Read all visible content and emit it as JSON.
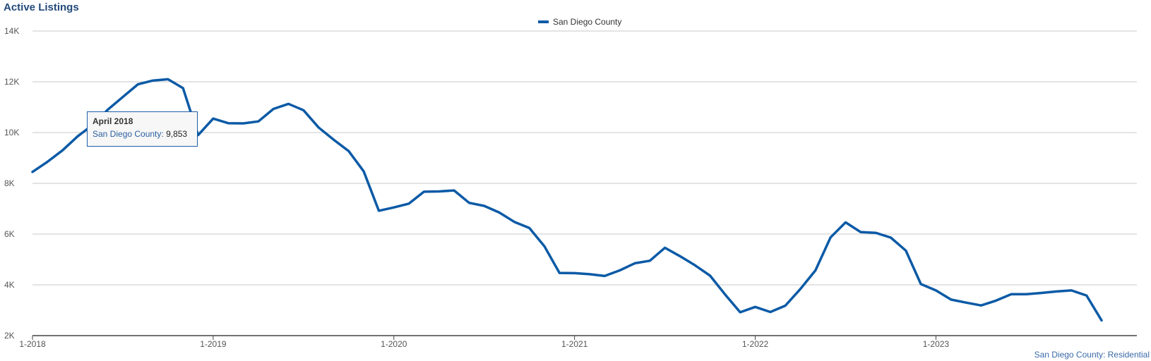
{
  "chart_data": {
    "type": "line",
    "title": "Active Listings",
    "ylim": [
      2000,
      14000
    ],
    "y_ticks": [
      2000,
      4000,
      6000,
      8000,
      10000,
      12000,
      14000
    ],
    "y_tick_labels": [
      "2K",
      "4K",
      "6K",
      "8K",
      "10K",
      "12K",
      "14K"
    ],
    "x_tick_labels": [
      "1-2018",
      "1-2019",
      "1-2020",
      "1-2021",
      "1-2022",
      "1-2023"
    ],
    "x_start": "2018-01",
    "x_end": "2023-12",
    "grid": true,
    "legend_position": "top-center",
    "color": "#0b5aa6",
    "x": [
      "2018-01",
      "2018-02",
      "2018-03",
      "2018-04",
      "2018-05",
      "2018-06",
      "2018-07",
      "2018-08",
      "2018-09",
      "2018-10",
      "2018-11",
      "2018-12",
      "2019-01",
      "2019-02",
      "2019-03",
      "2019-04",
      "2019-05",
      "2019-06",
      "2019-07",
      "2019-08",
      "2019-09",
      "2019-10",
      "2019-11",
      "2019-12",
      "2020-01",
      "2020-02",
      "2020-03",
      "2020-04",
      "2020-05",
      "2020-06",
      "2020-07",
      "2020-08",
      "2020-09",
      "2020-10",
      "2020-11",
      "2020-12",
      "2021-01",
      "2021-02",
      "2021-03",
      "2021-04",
      "2021-05",
      "2021-06",
      "2021-07",
      "2021-08",
      "2021-09",
      "2021-10",
      "2021-11",
      "2021-12",
      "2022-01",
      "2022-02",
      "2022-03",
      "2022-04",
      "2022-05",
      "2022-06",
      "2022-07",
      "2022-08",
      "2022-09",
      "2022-10",
      "2022-11",
      "2022-12",
      "2023-01",
      "2023-02",
      "2023-03",
      "2023-04",
      "2023-05",
      "2023-06",
      "2023-07",
      "2023-08",
      "2023-09",
      "2023-10",
      "2023-11",
      "2023-12"
    ],
    "series": [
      {
        "name": "San Diego County",
        "values": [
          8450,
          8850,
          9300,
          9853,
          10300,
          10900,
          11400,
          11900,
          12050,
          12100,
          11750,
          9900,
          10550,
          10370,
          10360,
          10440,
          10930,
          11130,
          10880,
          10200,
          9720,
          9270,
          8470,
          6920,
          7050,
          7200,
          7670,
          7680,
          7720,
          7230,
          7110,
          6850,
          6480,
          6240,
          5520,
          4470,
          4460,
          4420,
          4350,
          4570,
          4850,
          4950,
          5460,
          5130,
          4770,
          4360,
          3620,
          2920,
          3130,
          2930,
          3180,
          3840,
          4570,
          5870,
          6460,
          6080,
          6050,
          5860,
          5350,
          4030,
          3780,
          3420,
          3300,
          3190,
          3380,
          3630,
          3630,
          3680,
          3740,
          3780,
          3580,
          2600
        ]
      }
    ],
    "tooltip": {
      "title": "April 2018",
      "series_label": "San Diego County:",
      "value": "9,853"
    },
    "source_note": "San Diego County: Residential"
  }
}
